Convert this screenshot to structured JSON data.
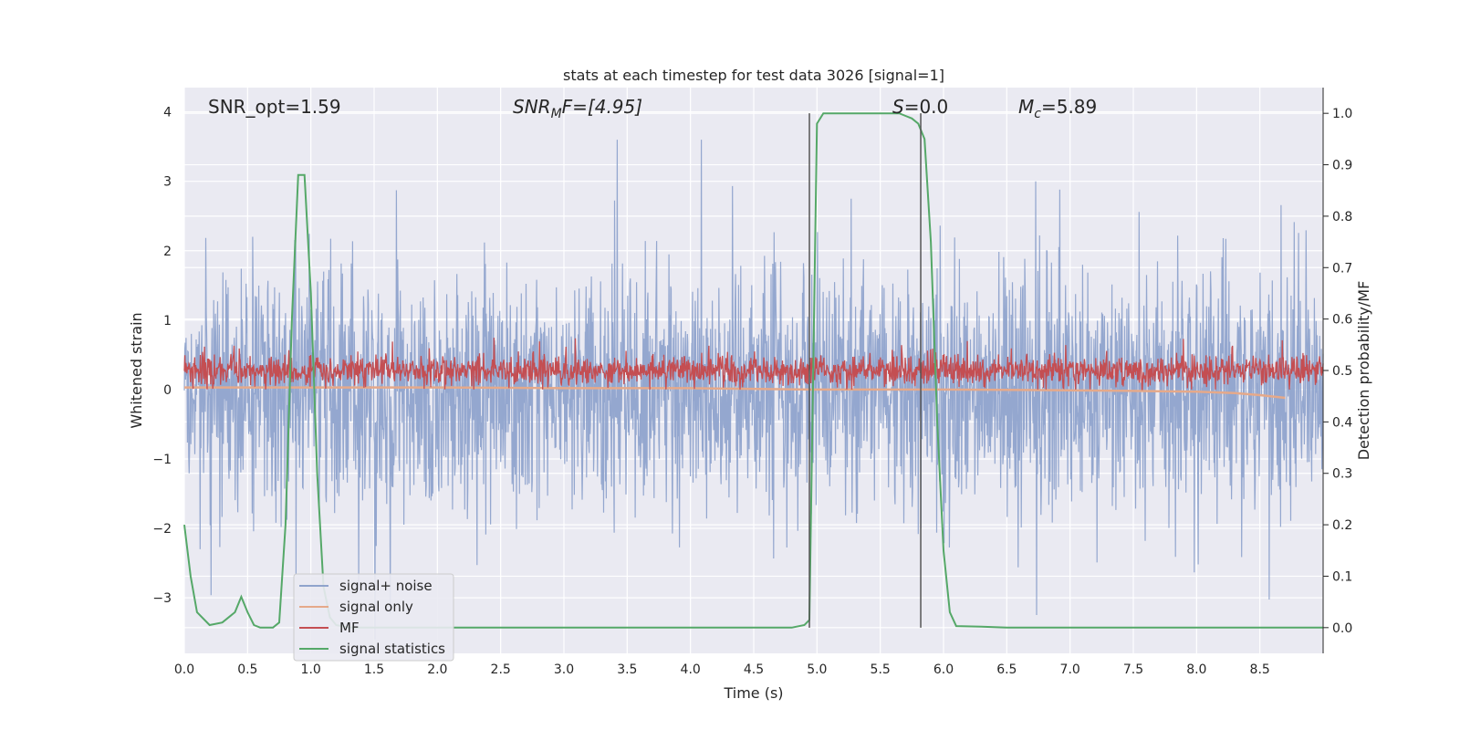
{
  "chart_data": {
    "type": "line",
    "title": "stats at each timestep for test data 3026 [signal=1]",
    "xlabel": "Time (s)",
    "ylabel_left": "Whitened strain",
    "ylabel_right": "Detection probability/MF",
    "xlim": [
      0,
      9
    ],
    "ylim_left": [
      -3.8,
      4.35
    ],
    "ylim_right": [
      -0.05,
      1.05
    ],
    "xticks": [
      "0.0",
      "0.5",
      "1.0",
      "1.5",
      "2.0",
      "2.5",
      "3.0",
      "3.5",
      "4.0",
      "4.5",
      "5.0",
      "5.5",
      "6.0",
      "6.5",
      "7.0",
      "7.5",
      "8.0",
      "8.5"
    ],
    "yticks_left": [
      "−3",
      "−2",
      "−1",
      "0",
      "1",
      "2",
      "3",
      "4"
    ],
    "yticks_right": [
      "0.0",
      "0.1",
      "0.2",
      "0.3",
      "0.4",
      "0.5",
      "0.6",
      "0.7",
      "0.8",
      "0.9",
      "1.0"
    ],
    "grid": true,
    "legend_position": "lower-left",
    "annotations": {
      "snr_opt": "SNR_opt=1.59",
      "snr_mf_base": "SNR",
      "snr_mf_sub": "M",
      "snr_mf_rest": "F=[4.95]",
      "s_var": "S",
      "s_rest": "=0.0",
      "mc_var": "M",
      "mc_sub": "c",
      "mc_rest": "=5.89"
    },
    "vertical_lines_x": [
      4.94,
      5.82
    ],
    "series": [
      {
        "name": "signal+ noise",
        "color": "#8fa3cc",
        "axis": "left",
        "pattern": "dense noise, roughly within ±1.7 with spikes to ±3.5",
        "range": [
          -3.6,
          3.6
        ]
      },
      {
        "name": "signal only",
        "color": "#e5a98a",
        "axis": "left",
        "x": [
          0,
          1,
          2,
          3,
          4,
          5,
          6,
          7,
          7.5,
          8,
          8.3,
          8.5,
          8.7
        ],
        "y": [
          0.03,
          0.03,
          0.03,
          0.02,
          0.02,
          0.0,
          0.0,
          -0.01,
          -0.02,
          -0.03,
          -0.05,
          -0.08,
          -0.12
        ]
      },
      {
        "name": "MF",
        "color": "#c44e52",
        "axis": "left",
        "pattern": "dense band, roughly 0 to 0.6 with peaks near 0.8",
        "range": [
          0.0,
          0.8
        ]
      },
      {
        "name": "signal statistics",
        "color": "#55a868",
        "axis": "right",
        "x": [
          0,
          0.05,
          0.1,
          0.2,
          0.3,
          0.4,
          0.45,
          0.5,
          0.55,
          0.6,
          0.7,
          0.75,
          0.8,
          0.85,
          0.9,
          0.95,
          1.0,
          1.05,
          1.1,
          1.15,
          1.2,
          1.3,
          1.5,
          2.0,
          3.0,
          4.0,
          4.8,
          4.9,
          4.94,
          4.97,
          5.0,
          5.05,
          5.1,
          5.5,
          5.6,
          5.65,
          5.7,
          5.75,
          5.8,
          5.85,
          5.9,
          5.95,
          6.0,
          6.05,
          6.1,
          6.3,
          6.5,
          7.0,
          8.0,
          9.0
        ],
        "y": [
          0.2,
          0.1,
          0.03,
          0.005,
          0.01,
          0.03,
          0.06,
          0.03,
          0.005,
          0.0,
          0.0,
          0.01,
          0.2,
          0.6,
          0.88,
          0.88,
          0.65,
          0.3,
          0.08,
          0.02,
          0.005,
          0.0,
          0.0,
          0.0,
          0.0,
          0.0,
          0.0,
          0.005,
          0.015,
          0.5,
          0.98,
          1.0,
          1.0,
          1.0,
          1.0,
          1.0,
          0.995,
          0.99,
          0.98,
          0.95,
          0.75,
          0.4,
          0.15,
          0.03,
          0.003,
          0.002,
          0.0,
          0.0,
          0.0,
          0.0
        ]
      }
    ]
  }
}
